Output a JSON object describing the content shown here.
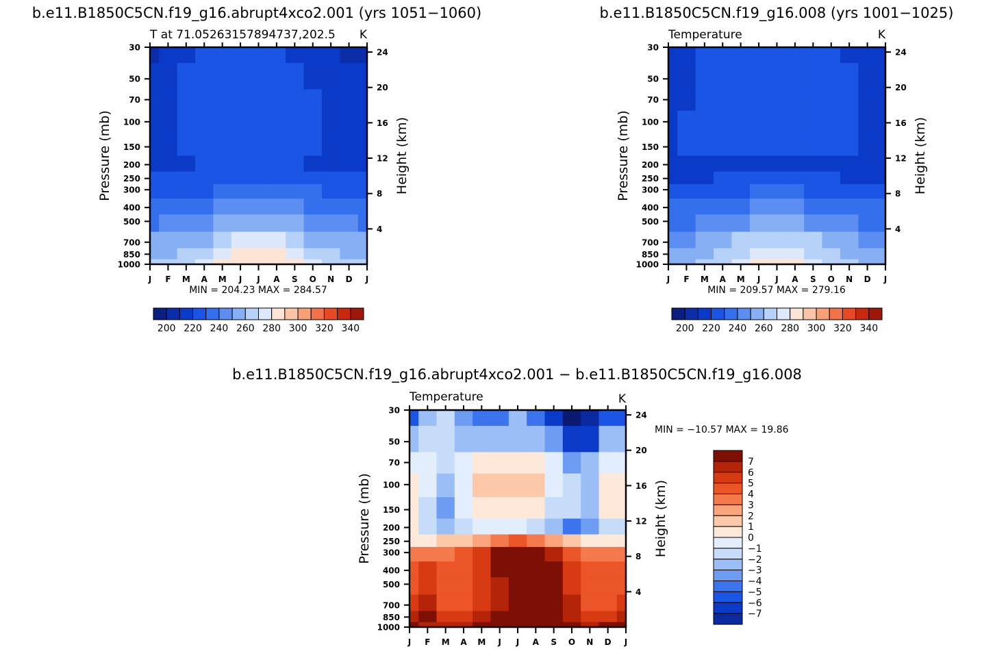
{
  "colors": {
    "abs_levels": [
      "#0a1f80",
      "#0b2ea8",
      "#0b3ac9",
      "#1b55e5",
      "#3570ec",
      "#5b8ef0",
      "#86b0f3",
      "#b6d1f7",
      "#dde9fa",
      "#fde4d4",
      "#fbc4a6",
      "#f79f77",
      "#f2734a",
      "#e64a23",
      "#c8290e",
      "#9d1808",
      "#6e0d05"
    ],
    "diff_levels": [
      "#0b1a70",
      "#0b2aa0",
      "#0b3ac9",
      "#1b55e5",
      "#3c74ee",
      "#6e9cf2",
      "#9cbef6",
      "#c6dcf9",
      "#e2eefc",
      "#fde8da",
      "#fbc8aa",
      "#f9a47d",
      "#f47a4e",
      "#ec5528",
      "#d83a14",
      "#b42409",
      "#7e0f04"
    ]
  },
  "axes": {
    "months": [
      "J",
      "F",
      "M",
      "A",
      "M",
      "J",
      "J",
      "A",
      "S",
      "O",
      "N",
      "D",
      "J"
    ],
    "pressure_ticks": [
      "30",
      "50",
      "70",
      "100",
      "150",
      "200",
      "250",
      "300",
      "400",
      "500",
      "700",
      "850",
      "1000"
    ],
    "pressure_values": [
      30,
      50,
      70,
      100,
      150,
      200,
      250,
      300,
      400,
      500,
      700,
      850,
      1000
    ],
    "height_ticks": [
      "24",
      "20",
      "16",
      "12",
      "8",
      "4"
    ],
    "height_values": [
      24,
      20,
      16,
      12,
      8,
      4
    ],
    "ylabel_left": "Pressure (mb)",
    "ylabel_right": "Height (km)"
  },
  "panel1": {
    "title": "b.e11.B1850C5CN.f19_g16.abrupt4xco2.001 (yrs 1051−1060)",
    "subtitle_left": "T at 71.05263157894737,202.5",
    "units": "K",
    "minmax": "MIN = 204.23 MAX = 284.57",
    "colorbar_labels": [
      "200",
      "220",
      "240",
      "260",
      "280",
      "300",
      "320",
      "340"
    ]
  },
  "panel2": {
    "title": "b.e11.B1850C5CN.f19_g16.008 (yrs 1001−1025)",
    "subtitle_left": "Temperature",
    "units": "K",
    "minmax": "MIN = 209.57 MAX = 279.16",
    "colorbar_labels": [
      "200",
      "220",
      "240",
      "260",
      "280",
      "300",
      "320",
      "340"
    ]
  },
  "panel3": {
    "title": "b.e11.B1850C5CN.f19_g16.abrupt4xco2.001 − b.e11.B1850C5CN.f19_g16.008",
    "subtitle_left": "Temperature",
    "units": "K",
    "minmax": "MIN = −10.57 MAX =   19.86",
    "colorbar_labels": [
      "7",
      "6",
      "5",
      "4",
      "3",
      "2",
      "1",
      "0",
      "−1",
      "−2",
      "−3",
      "−4",
      "−5",
      "−6",
      "−7"
    ]
  },
  "chart_data": [
    {
      "type": "heatmap",
      "title": "b.e11.B1850C5CN.f19_g16.abrupt4xco2.001 (yrs 1051−1060)",
      "subtitle": "T at 71.05263157894737,202.5",
      "units": "K",
      "x": [
        "J",
        "F",
        "M",
        "A",
        "M",
        "J",
        "J",
        "A",
        "S",
        "O",
        "N",
        "D",
        "J"
      ],
      "y": [
        30,
        50,
        70,
        100,
        150,
        200,
        250,
        300,
        400,
        500,
        700,
        850,
        1000
      ],
      "xlabel": "",
      "ylabel": "Pressure (mb)",
      "ylabel_right": "Height (km)",
      "levels": [
        195,
        205,
        215,
        225,
        235,
        245,
        255,
        265,
        275,
        285,
        295,
        305,
        315,
        325,
        335,
        345
      ],
      "z": [
        [
          204,
          208,
          214,
          216,
          216,
          216,
          216,
          216,
          214,
          210,
          206,
          204,
          204
        ],
        [
          208,
          211,
          215,
          217,
          217,
          217,
          217,
          217,
          215,
          213,
          209,
          208,
          208
        ],
        [
          212,
          213,
          215,
          217,
          218,
          218,
          218,
          218,
          216,
          215,
          213,
          212,
          212
        ],
        [
          213,
          214,
          215,
          217,
          218,
          218,
          218,
          218,
          218,
          216,
          214,
          213,
          213
        ],
        [
          214,
          214,
          215,
          216,
          217,
          217,
          217,
          217,
          216,
          215,
          214,
          214,
          214
        ],
        [
          214,
          214,
          214,
          215,
          215,
          215,
          215,
          215,
          215,
          214,
          214,
          214,
          214
        ],
        [
          216,
          216,
          216,
          217,
          219,
          222,
          224,
          222,
          219,
          217,
          216,
          216,
          216
        ],
        [
          221,
          221,
          222,
          224,
          228,
          232,
          234,
          232,
          229,
          225,
          222,
          221,
          221
        ],
        [
          229,
          229,
          230,
          233,
          238,
          242,
          244,
          242,
          238,
          234,
          230,
          229,
          229
        ],
        [
          234,
          235,
          237,
          241,
          246,
          251,
          253,
          251,
          247,
          241,
          237,
          235,
          234
        ],
        [
          245,
          245,
          247,
          253,
          260,
          266,
          268,
          266,
          260,
          253,
          247,
          245,
          245
        ],
        [
          252,
          253,
          255,
          262,
          270,
          276,
          278,
          276,
          270,
          262,
          255,
          253,
          252
        ],
        [
          255,
          256,
          259,
          267,
          276,
          283,
          284,
          283,
          276,
          267,
          259,
          256,
          255
        ]
      ],
      "min": 204.23,
      "max": 284.57,
      "colorbar_ticks": [
        200,
        220,
        240,
        260,
        280,
        300,
        320,
        340
      ]
    },
    {
      "type": "heatmap",
      "title": "b.e11.B1850C5CN.f19_g16.008 (yrs 1001−1025)",
      "subtitle": "Temperature",
      "units": "K",
      "x": [
        "J",
        "F",
        "M",
        "A",
        "M",
        "J",
        "J",
        "A",
        "S",
        "O",
        "N",
        "D",
        "J"
      ],
      "y": [
        30,
        50,
        70,
        100,
        150,
        200,
        250,
        300,
        400,
        500,
        700,
        850,
        1000
      ],
      "xlabel": "",
      "ylabel": "Pressure (mb)",
      "ylabel_right": "Height (km)",
      "levels": [
        195,
        205,
        215,
        225,
        235,
        245,
        255,
        265,
        275,
        285,
        295,
        305,
        315,
        325,
        335,
        345
      ],
      "z": [
        [
          210,
          211,
          216,
          220,
          221,
          221,
          219,
          221,
          221,
          219,
          214,
          210,
          210
        ],
        [
          211,
          213,
          217,
          220,
          221,
          221,
          221,
          221,
          221,
          220,
          216,
          211,
          211
        ],
        [
          212,
          214,
          217,
          219,
          220,
          220,
          220,
          220,
          220,
          219,
          216,
          212,
          212
        ],
        [
          213,
          215,
          216,
          218,
          219,
          219,
          219,
          219,
          219,
          218,
          216,
          213,
          213
        ],
        [
          214,
          215,
          216,
          217,
          217,
          217,
          217,
          217,
          217,
          216,
          215,
          214,
          214
        ],
        [
          214,
          214,
          214,
          214,
          214,
          214,
          214,
          214,
          214,
          214,
          214,
          214,
          214
        ],
        [
          213,
          213,
          214,
          215,
          217,
          218,
          219,
          218,
          217,
          215,
          214,
          213,
          213
        ],
        [
          218,
          218,
          219,
          221,
          223,
          225,
          227,
          225,
          223,
          221,
          219,
          218,
          218
        ],
        [
          225,
          226,
          227,
          230,
          233,
          236,
          237,
          236,
          233,
          230,
          227,
          226,
          225
        ],
        [
          232,
          233,
          235,
          238,
          242,
          246,
          247,
          246,
          242,
          238,
          235,
          233,
          232
        ],
        [
          243,
          244,
          246,
          250,
          255,
          259,
          261,
          259,
          255,
          250,
          246,
          244,
          243
        ],
        [
          249,
          250,
          253,
          258,
          264,
          269,
          271,
          269,
          264,
          258,
          253,
          250,
          249
        ],
        [
          253,
          254,
          257,
          262,
          270,
          277,
          279,
          277,
          270,
          262,
          257,
          254,
          253
        ]
      ],
      "min": 209.57,
      "max": 279.16,
      "colorbar_ticks": [
        200,
        220,
        240,
        260,
        280,
        300,
        320,
        340
      ]
    },
    {
      "type": "heatmap",
      "title": "b.e11.B1850C5CN.f19_g16.abrupt4xco2.001 − b.e11.B1850C5CN.f19_g16.008",
      "subtitle": "Temperature",
      "units": "K",
      "x": [
        "J",
        "F",
        "M",
        "A",
        "M",
        "J",
        "J",
        "A",
        "S",
        "O",
        "N",
        "D",
        "J"
      ],
      "y": [
        30,
        50,
        70,
        100,
        150,
        200,
        250,
        300,
        400,
        500,
        700,
        850,
        1000
      ],
      "xlabel": "",
      "ylabel": "Pressure (mb)",
      "ylabel_right": "Height (km)",
      "levels": [
        -8,
        -7,
        -6,
        -5,
        -4,
        -3,
        -2,
        -1,
        0,
        1,
        2,
        3,
        4,
        5,
        6,
        7,
        8
      ],
      "z": [
        [
          -6,
          -3,
          -2,
          -4,
          -5,
          -5,
          -3,
          -5,
          -7,
          -9,
          -8,
          -6,
          -6
        ],
        [
          -3,
          -2,
          -2,
          -3,
          -3,
          -3,
          -3,
          -3,
          -4,
          -7,
          -7,
          -3,
          -3
        ],
        [
          -1,
          -1,
          -2,
          -1,
          0,
          0,
          0,
          0,
          -1,
          -4,
          -3,
          -1,
          -1
        ],
        [
          0,
          -1,
          -3,
          -1,
          1,
          1.5,
          1,
          1,
          -1,
          -2,
          -3,
          0,
          0
        ],
        [
          0,
          -2,
          -4,
          -1,
          0,
          0.5,
          0,
          0,
          -2,
          -2,
          -3,
          0,
          0
        ],
        [
          0,
          -2,
          -3,
          -2,
          -1,
          -1,
          -1,
          -2,
          -3,
          -5,
          -4,
          -2,
          -2
        ],
        [
          0,
          0,
          1,
          1,
          2,
          3,
          4,
          3,
          2,
          1,
          0,
          0,
          0
        ],
        [
          3,
          3,
          3,
          4,
          5,
          7,
          8,
          7,
          6,
          4,
          3,
          3,
          3
        ],
        [
          4,
          5,
          4,
          4,
          5,
          7,
          10,
          11,
          8,
          5,
          4,
          4,
          4
        ],
        [
          4,
          5,
          4,
          4,
          5,
          6,
          9,
          11,
          8,
          5,
          4,
          4,
          4
        ],
        [
          5,
          6,
          4,
          4,
          5,
          6,
          8,
          12,
          9,
          6,
          4,
          4,
          5
        ],
        [
          6,
          7,
          5,
          5,
          6,
          7,
          9,
          13,
          9,
          6,
          5,
          5,
          6
        ],
        [
          7,
          6,
          6,
          6,
          7,
          8,
          9,
          12,
          10,
          7,
          6,
          7,
          7
        ]
      ],
      "min": -10.57,
      "max": 19.86,
      "colorbar_ticks": [
        7,
        6,
        5,
        4,
        3,
        2,
        1,
        0,
        -1,
        -2,
        -3,
        -4,
        -5,
        -6,
        -7
      ]
    }
  ]
}
